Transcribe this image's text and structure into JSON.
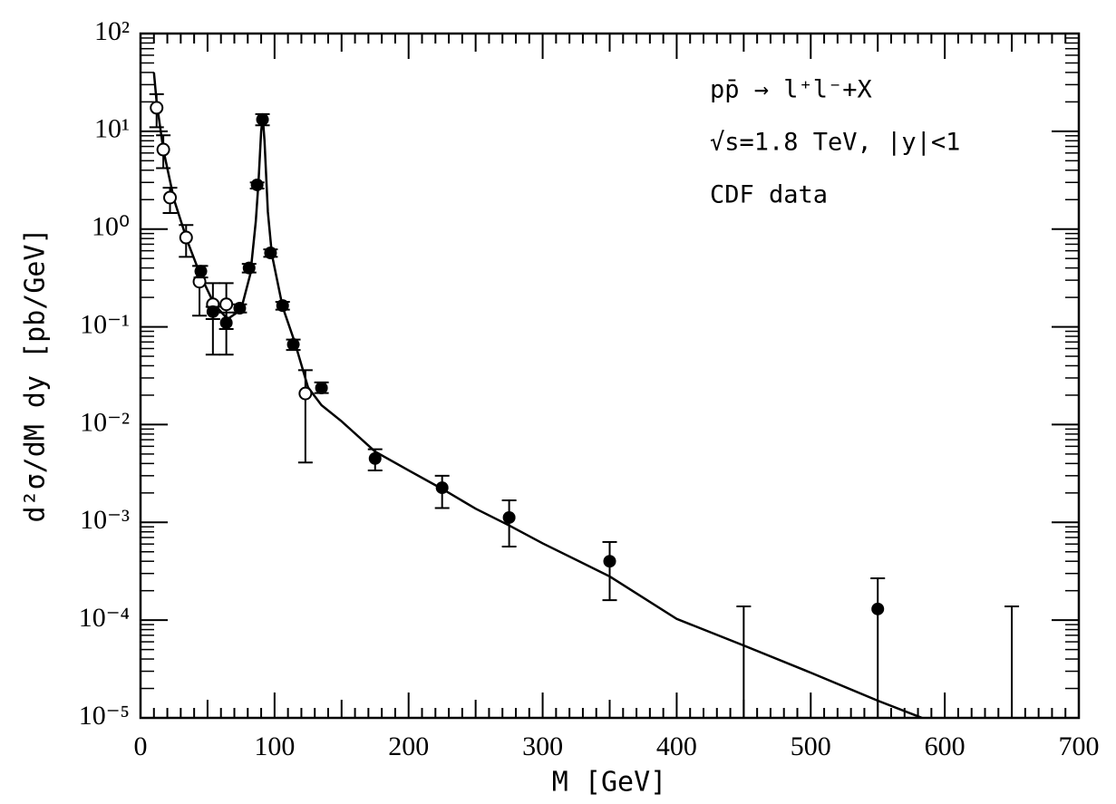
{
  "chart_data": {
    "type": "scatter",
    "x_label": "M [GeV]",
    "y_label": "d²σ/dM dy [pb/GeV]",
    "annotations": [
      "pp̄ → l⁺l⁻+X",
      "√s=1.8 TeV, |y|<1",
      "CDF data"
    ],
    "log_y": true,
    "xlim": [
      0,
      700
    ],
    "xticks": [
      0,
      100,
      200,
      300,
      400,
      500,
      600,
      700
    ],
    "ylim": [
      1e-05,
      100
    ],
    "yticks": [
      {
        "value": 1e-05,
        "label": "10⁻⁵"
      },
      {
        "value": 0.0001,
        "label": "10⁻⁴"
      },
      {
        "value": 0.001,
        "label": "10⁻³"
      },
      {
        "value": 0.01,
        "label": "10⁻²"
      },
      {
        "value": 0.1,
        "label": "10⁻¹"
      },
      {
        "value": 1,
        "label": "10⁰"
      },
      {
        "value": 10,
        "label": "10¹"
      },
      {
        "value": 100,
        "label": "10²"
      }
    ],
    "color": "#000000",
    "open_points": {
      "x": [
        12,
        17,
        22,
        34,
        44,
        54,
        64,
        123
      ],
      "values": [
        17.4,
        6.5,
        2.1,
        0.82,
        0.29,
        0.17,
        0.17,
        0.0208
      ],
      "lower": [
        11,
        4.2,
        1.46,
        0.52,
        0.13,
        0.052,
        0.052,
        0.0041
      ],
      "upper": [
        24,
        9.1,
        2.65,
        1.1,
        0.42,
        0.28,
        0.28,
        0.036
      ]
    },
    "filled_points": {
      "x": [
        45,
        54,
        64,
        74,
        81,
        87,
        91,
        97,
        106,
        114,
        135,
        175,
        225,
        275,
        350,
        550
      ],
      "values": [
        0.37,
        0.143,
        0.11,
        0.155,
        0.4,
        2.83,
        13.2,
        0.57,
        0.165,
        0.066,
        0.0237,
        0.0045,
        0.00226,
        0.00112,
        0.0004,
        0.00013
      ],
      "lower": [
        0.32,
        0.12,
        0.095,
        0.14,
        0.36,
        2.6,
        11.5,
        0.52,
        0.15,
        0.058,
        0.021,
        0.0034,
        0.0014,
        0.000565,
        0.00016,
        1e-05
      ],
      "upper": [
        0.42,
        0.16,
        0.14,
        0.17,
        0.44,
        3.0,
        15,
        0.62,
        0.18,
        0.074,
        0.027,
        0.0056,
        0.003,
        0.00168,
        0.00063,
        0.000268
      ]
    },
    "upper_limits": {
      "x": [
        450,
        650
      ],
      "values": [
        0.000138,
        0.000138
      ]
    },
    "curve": {
      "x": [
        10,
        12,
        17,
        25,
        35,
        45,
        55,
        65,
        75,
        82,
        86,
        88,
        90,
        91.2,
        92.5,
        95,
        98,
        106,
        115,
        125,
        135,
        150,
        175,
        200,
        225,
        250,
        275,
        300,
        350,
        400,
        450,
        500,
        550,
        583
      ],
      "values": [
        40,
        20,
        6.5,
        2.0,
        0.75,
        0.33,
        0.17,
        0.12,
        0.15,
        0.35,
        1.2,
        3,
        10,
        14,
        8,
        1.5,
        0.55,
        0.16,
        0.07,
        0.024,
        0.0158,
        0.0108,
        0.0053,
        0.0034,
        0.0022,
        0.00138,
        0.00093,
        0.00061,
        0.00028,
        0.000103,
        5.5e-05,
        2.9e-05,
        1.5e-05,
        1e-05
      ]
    }
  }
}
